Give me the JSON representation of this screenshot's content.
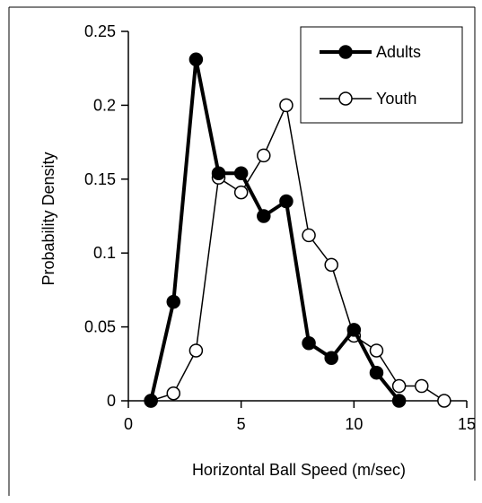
{
  "chart_data": {
    "type": "line",
    "title": "",
    "xlabel": "Horizontal Ball Speed (m/sec)",
    "ylabel": "Probability Density",
    "xlim": [
      0,
      15
    ],
    "ylim": [
      0,
      0.25
    ],
    "x_ticks": [
      "0",
      "5",
      "10",
      "15"
    ],
    "y_ticks": [
      "0",
      "0.05",
      "0.1",
      "0.15",
      "0.2",
      "0.25"
    ],
    "grid": false,
    "legend_position": "top-right",
    "series": [
      {
        "name": "Adults",
        "style": "filled-circle-thick",
        "color": "#000000",
        "x": [
          1,
          2,
          3,
          4,
          5,
          6,
          7,
          8,
          9,
          10,
          11,
          12
        ],
        "y": [
          0,
          0.067,
          0.231,
          0.154,
          0.154,
          0.125,
          0.135,
          0.039,
          0.029,
          0.048,
          0.019,
          0
        ]
      },
      {
        "name": "Youth",
        "style": "open-circle-thin",
        "color": "#000000",
        "x": [
          1,
          2,
          3,
          4,
          5,
          6,
          7,
          8,
          9,
          10,
          11,
          12,
          13,
          14
        ],
        "y": [
          0,
          0.005,
          0.034,
          0.151,
          0.141,
          0.166,
          0.2,
          0.112,
          0.092,
          0.044,
          0.034,
          0.01,
          0.01,
          0
        ]
      }
    ]
  }
}
